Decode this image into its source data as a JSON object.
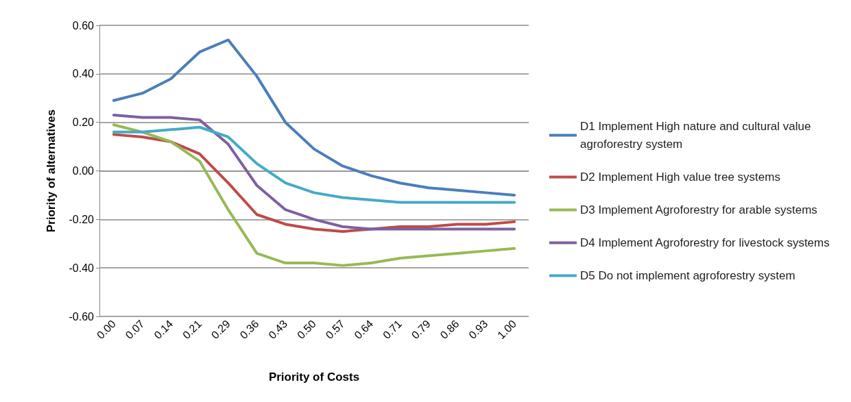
{
  "chart_data": {
    "type": "line",
    "xlabel": "Priority of Costs",
    "ylabel": "Priority of alternatives",
    "categories": [
      "0.00",
      "0.07",
      "0.14",
      "0.21",
      "0.29",
      "0.36",
      "0.43",
      "0.50",
      "0.57",
      "0.64",
      "0.71",
      "0.79",
      "0.86",
      "0.93",
      "1.00"
    ],
    "series": [
      {
        "name": "D1 Implement High nature and cultural value agroforestry system",
        "color": "#4a7ebb",
        "values": [
          0.29,
          0.32,
          0.38,
          0.49,
          0.54,
          0.39,
          0.2,
          0.09,
          0.02,
          -0.02,
          -0.05,
          -0.07,
          -0.08,
          -0.09,
          -0.1
        ]
      },
      {
        "name": "D2 Implement High value tree systems",
        "color": "#be4b48",
        "values": [
          0.15,
          0.14,
          0.12,
          0.07,
          -0.05,
          -0.18,
          -0.22,
          -0.24,
          -0.25,
          -0.24,
          -0.23,
          -0.23,
          -0.22,
          -0.22,
          -0.21
        ]
      },
      {
        "name": "D3 Implement Agroforestry for arable systems",
        "color": "#98b954",
        "values": [
          0.19,
          0.16,
          0.12,
          0.04,
          -0.16,
          -0.34,
          -0.38,
          -0.38,
          -0.39,
          -0.38,
          -0.36,
          -0.35,
          -0.34,
          -0.33,
          -0.32
        ]
      },
      {
        "name": "D4 Implement Agroforestry for livestock systems",
        "color": "#7d60a0",
        "values": [
          0.23,
          0.22,
          0.22,
          0.21,
          0.11,
          -0.06,
          -0.16,
          -0.2,
          -0.23,
          -0.24,
          -0.24,
          -0.24,
          -0.24,
          -0.24,
          -0.24
        ]
      },
      {
        "name": "D5 Do not implement agroforestry system",
        "color": "#46aac5",
        "values": [
          0.16,
          0.16,
          0.17,
          0.18,
          0.14,
          0.03,
          -0.05,
          -0.09,
          -0.11,
          -0.12,
          -0.13,
          -0.13,
          -0.13,
          -0.13,
          -0.13
        ]
      }
    ],
    "ylim": [
      -0.6,
      0.6
    ],
    "yticks": [
      {
        "value": -0.6,
        "label": "-0.60"
      },
      {
        "value": -0.4,
        "label": "-0.40"
      },
      {
        "value": -0.2,
        "label": "-0.20"
      },
      {
        "value": 0,
        "label": "0.00"
      },
      {
        "value": 0.2,
        "label": "0.20"
      },
      {
        "value": 0.4,
        "label": "0.40"
      },
      {
        "value": 0.6,
        "label": "0.60"
      }
    ],
    "grid": "y",
    "legend": "right",
    "marker": "none",
    "line_style": "solid"
  }
}
